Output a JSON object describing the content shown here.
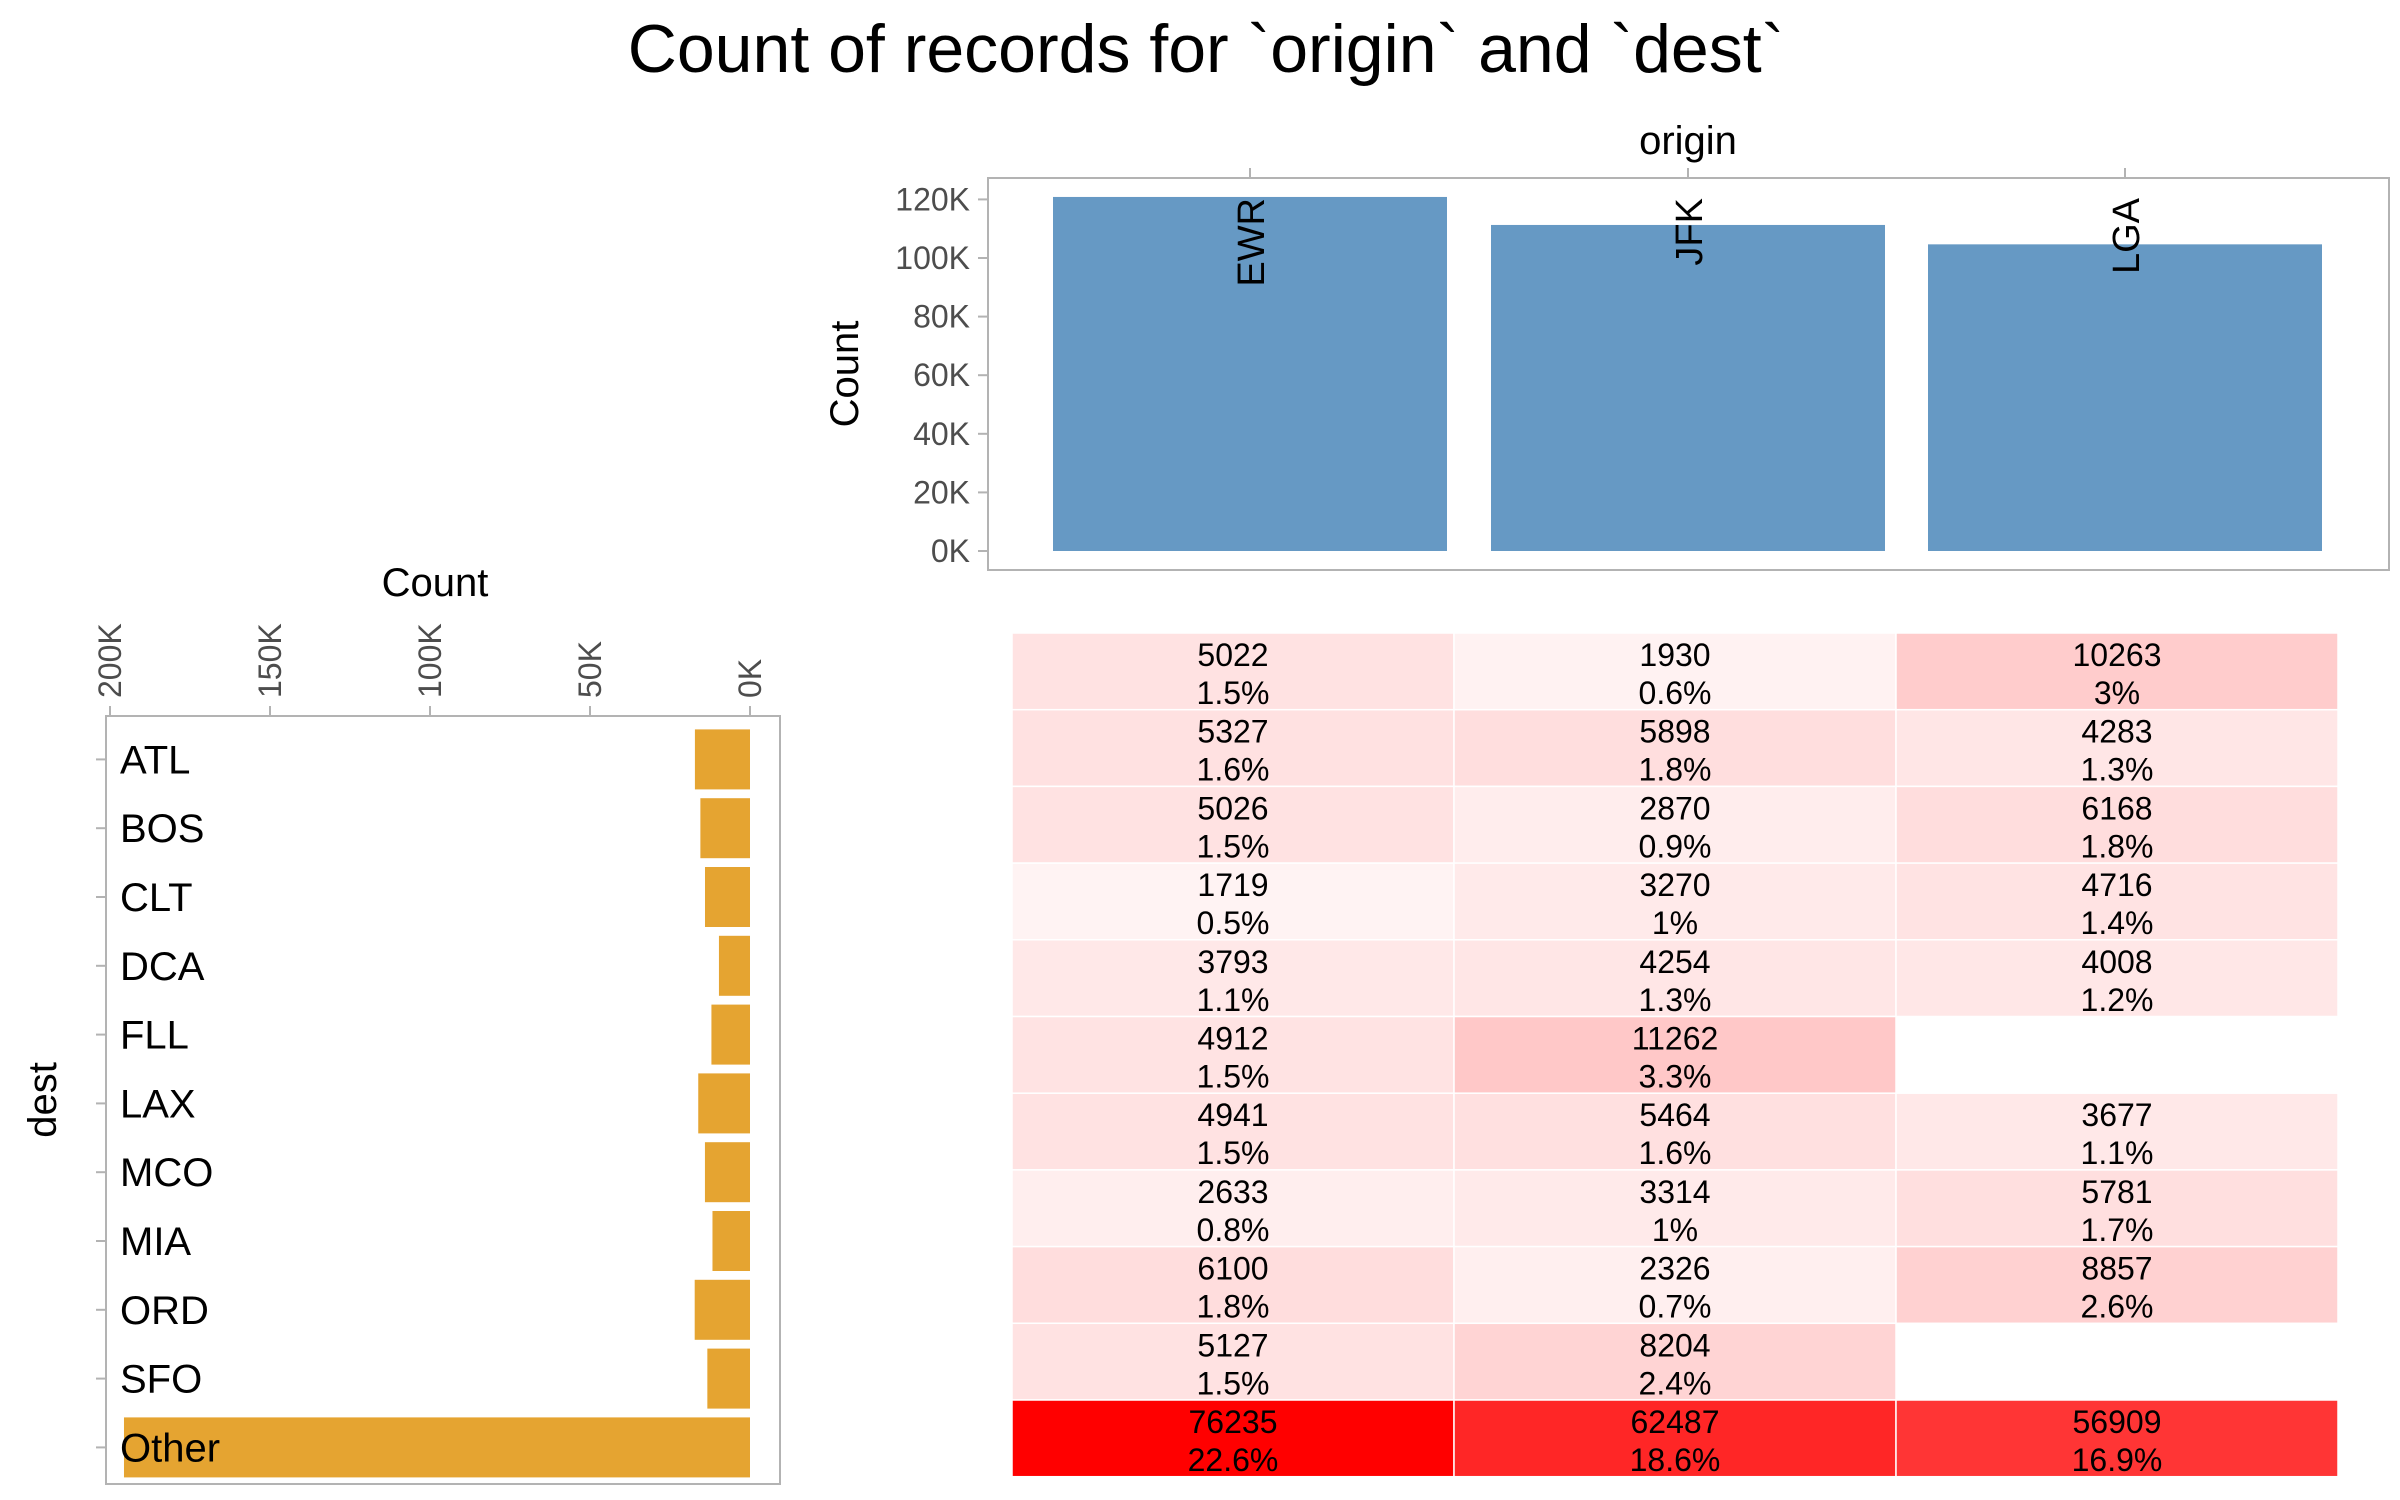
{
  "chart_data": {
    "type": "combined",
    "title": "Count of records for `origin` and `dest`",
    "origin_bar": {
      "type": "bar",
      "xlabel": "origin",
      "ylabel": "Count",
      "categories": [
        "EWR",
        "JFK",
        "LGA"
      ],
      "values": [
        120835,
        111279,
        104662
      ],
      "ylim": [
        0,
        125000
      ],
      "yticks": [
        0,
        20000,
        40000,
        60000,
        80000,
        100000,
        120000
      ],
      "ytick_labels": [
        "0K",
        "20K",
        "40K",
        "60K",
        "80K",
        "100K",
        "120K"
      ],
      "color": "#6699c4"
    },
    "dest_bar": {
      "type": "bar",
      "orientation": "horizontal",
      "xlabel": "Count",
      "ylabel": "dest",
      "categories": [
        "ATL",
        "BOS",
        "CLT",
        "DCA",
        "FLL",
        "LAX",
        "MCO",
        "MIA",
        "ORD",
        "SFO",
        "Other"
      ],
      "values": [
        17215,
        15508,
        14064,
        9705,
        12055,
        16174,
        14082,
        11728,
        17283,
        13331,
        195631
      ],
      "xlim": [
        0,
        200000
      ],
      "xticks": [
        200000,
        150000,
        100000,
        50000,
        0
      ],
      "xtick_labels": [
        "200K",
        "150K",
        "100K",
        "50K",
        "0K"
      ],
      "color": "#e5a431"
    },
    "heatmap": {
      "type": "heatmap",
      "rows": [
        "ATL",
        "BOS",
        "CLT",
        "DCA",
        "FLL",
        "LAX",
        "MCO",
        "MIA",
        "ORD",
        "SFO",
        "Other"
      ],
      "columns": [
        "EWR",
        "JFK",
        "LGA"
      ],
      "cells": [
        [
          {
            "count": "5022",
            "pct": "1.5%"
          },
          {
            "count": "1930",
            "pct": "0.6%"
          },
          {
            "count": "10263",
            "pct": "3%"
          }
        ],
        [
          {
            "count": "5327",
            "pct": "1.6%"
          },
          {
            "count": "5898",
            "pct": "1.8%"
          },
          {
            "count": "4283",
            "pct": "1.3%"
          }
        ],
        [
          {
            "count": "5026",
            "pct": "1.5%"
          },
          {
            "count": "2870",
            "pct": "0.9%"
          },
          {
            "count": "6168",
            "pct": "1.8%"
          }
        ],
        [
          {
            "count": "1719",
            "pct": "0.5%"
          },
          {
            "count": "3270",
            "pct": "1%"
          },
          {
            "count": "4716",
            "pct": "1.4%"
          }
        ],
        [
          {
            "count": "3793",
            "pct": "1.1%"
          },
          {
            "count": "4254",
            "pct": "1.3%"
          },
          {
            "count": "4008",
            "pct": "1.2%"
          }
        ],
        [
          {
            "count": "4912",
            "pct": "1.5%"
          },
          {
            "count": "11262",
            "pct": "3.3%"
          },
          null
        ],
        [
          {
            "count": "4941",
            "pct": "1.5%"
          },
          {
            "count": "5464",
            "pct": "1.6%"
          },
          {
            "count": "3677",
            "pct": "1.1%"
          }
        ],
        [
          {
            "count": "2633",
            "pct": "0.8%"
          },
          {
            "count": "3314",
            "pct": "1%"
          },
          {
            "count": "5781",
            "pct": "1.7%"
          }
        ],
        [
          {
            "count": "6100",
            "pct": "1.8%"
          },
          {
            "count": "2326",
            "pct": "0.7%"
          },
          {
            "count": "8857",
            "pct": "2.6%"
          }
        ],
        [
          {
            "count": "5127",
            "pct": "1.5%"
          },
          {
            "count": "8204",
            "pct": "2.4%"
          },
          null
        ],
        [
          {
            "count": "76235",
            "pct": "22.6%"
          },
          {
            "count": "62487",
            "pct": "18.6%"
          },
          {
            "count": "56909",
            "pct": "16.9%"
          }
        ]
      ],
      "color_low": "#ffffff",
      "color_high": "#ff0000"
    }
  }
}
